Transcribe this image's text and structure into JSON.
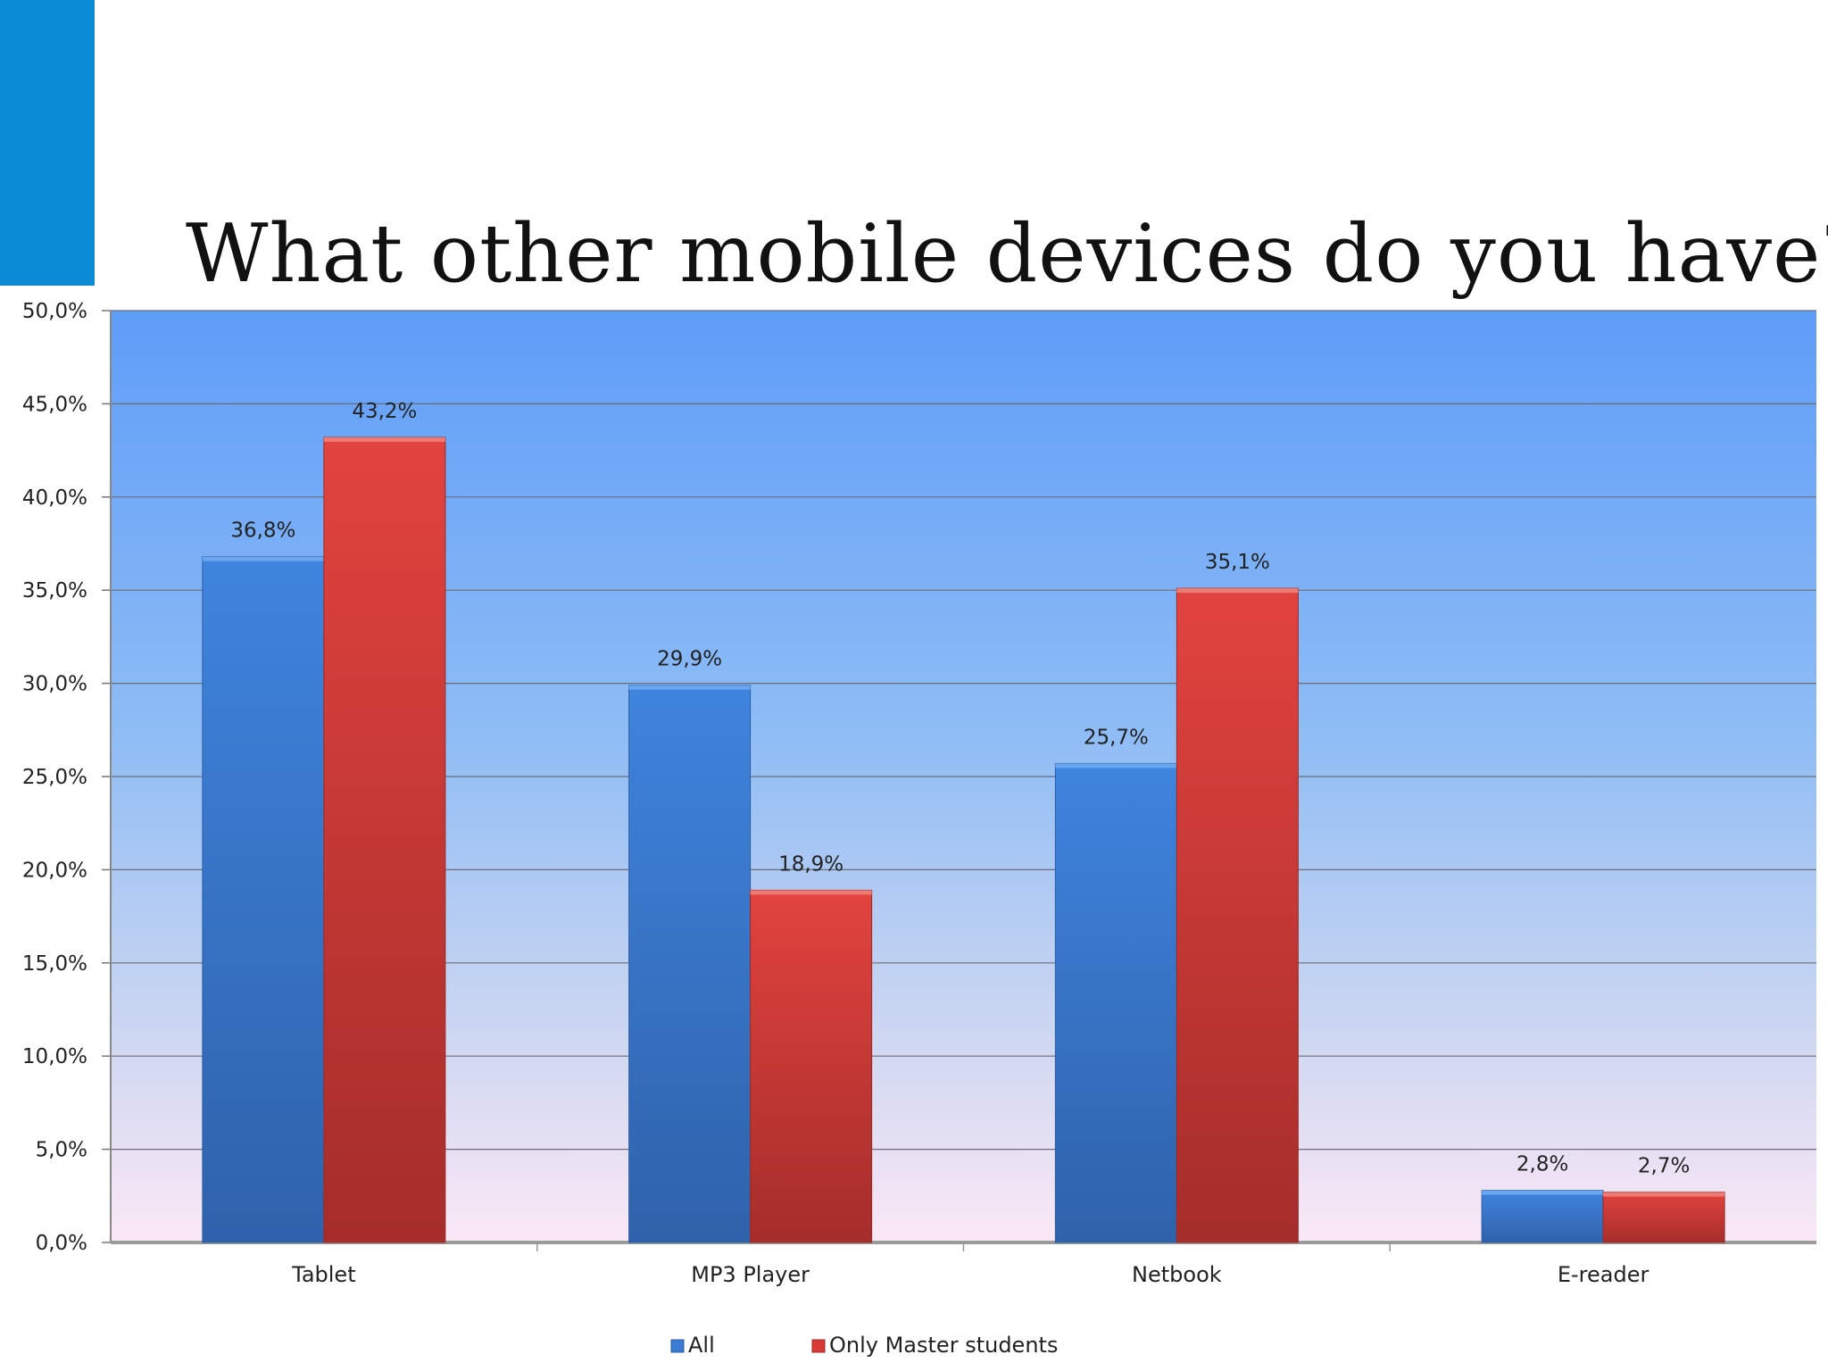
{
  "slide": {
    "title": "What other mobile devices do you have?",
    "accent_color": "#0b8ad6"
  },
  "chart_data": {
    "type": "bar",
    "title": "What other mobile devices do you have?",
    "categories": [
      "Tablet",
      "MP3 Player",
      "Netbook",
      "E-reader"
    ],
    "series": [
      {
        "name": "All",
        "values": [
          36.8,
          29.9,
          25.7,
          2.8
        ],
        "labels": [
          "36,8%",
          "29,9%",
          "25,7%",
          "2,8%"
        ],
        "color": "#3a7bd5"
      },
      {
        "name": "Only Master students",
        "values": [
          43.2,
          18.9,
          35.1,
          2.7
        ],
        "labels": [
          "43,2%",
          "18,9%",
          "35,1%",
          "2,7%"
        ],
        "color": "#d83a36"
      }
    ],
    "ylim": [
      0,
      50
    ],
    "yticks": [
      0,
      5,
      10,
      15,
      20,
      25,
      30,
      35,
      40,
      45,
      50
    ],
    "ytick_labels": [
      "0,0%",
      "5,0%",
      "10,0%",
      "15,0%",
      "20,0%",
      "25,0%",
      "30,0%",
      "35,0%",
      "40,0%",
      "45,0%",
      "50,0%"
    ],
    "xlabel": "",
    "ylabel": "",
    "grid": true,
    "legend": "bottom",
    "plot_background": "gradient blue to light pink"
  }
}
